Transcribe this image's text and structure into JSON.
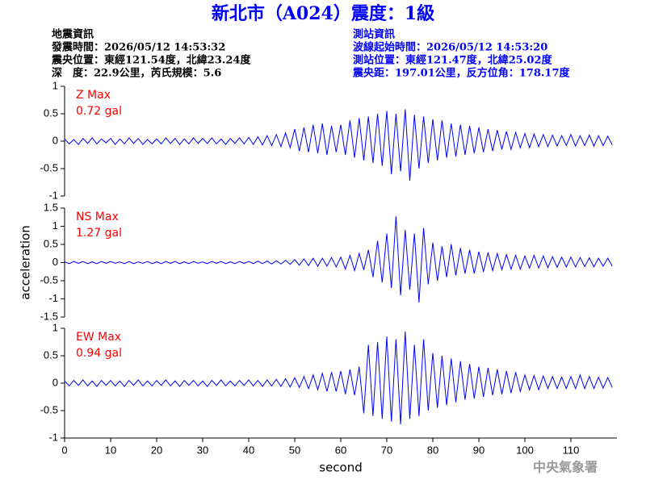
{
  "header": {
    "title": "新北市（A024）震度：1級",
    "left": [
      "地震資訊",
      "發震時間：2026/05/12 14:53:32",
      "震央位置：東經121.54度，北緯23.24度",
      "深　度：22.9公里，芮氏規模：5.6"
    ],
    "right": [
      "測站資訊",
      "波線起始時間：2026/05/12 14:53:20",
      "測站位置：東經121.47度，北緯25.02度",
      "震央距：197.01公里，反方位角：178.17度"
    ]
  },
  "footer": {
    "agency": "中央氣象署"
  },
  "chart_data": [
    {
      "type": "line",
      "label": "Z Max",
      "annotation": "0.72 gal",
      "color": "#0000ff",
      "ylim": [
        -1,
        1
      ],
      "yticks": [
        1,
        0.5,
        0,
        -0.5,
        -1
      ],
      "xlim": [
        0,
        120
      ],
      "x": [
        0,
        1,
        2,
        3,
        4,
        5,
        6,
        7,
        8,
        9,
        10,
        11,
        12,
        13,
        14,
        15,
        16,
        17,
        18,
        19,
        20,
        21,
        22,
        23,
        24,
        25,
        26,
        27,
        28,
        29,
        30,
        31,
        32,
        33,
        34,
        35,
        36,
        37,
        38,
        39,
        40,
        41,
        42,
        43,
        44,
        45,
        46,
        47,
        48,
        49,
        50,
        51,
        52,
        53,
        54,
        55,
        56,
        57,
        58,
        59,
        60,
        61,
        62,
        63,
        64,
        65,
        66,
        67,
        68,
        69,
        70,
        71,
        72,
        73,
        74,
        75,
        76,
        77,
        78,
        79,
        80,
        81,
        82,
        83,
        84,
        85,
        86,
        87,
        88,
        89,
        90,
        91,
        92,
        93,
        94,
        95,
        96,
        97,
        98,
        99,
        100,
        101,
        102,
        103,
        104,
        105,
        106,
        107,
        108,
        109,
        110,
        111,
        112,
        113,
        114,
        115,
        116,
        117,
        118,
        119
      ],
      "values": [
        0.04,
        -0.05,
        0.03,
        -0.06,
        0.05,
        -0.04,
        0.06,
        -0.05,
        0.04,
        -0.03,
        0.05,
        -0.06,
        0.04,
        -0.05,
        0.06,
        -0.04,
        0.05,
        -0.06,
        0.03,
        -0.05,
        0.04,
        -0.05,
        0.06,
        -0.04,
        0.05,
        -0.06,
        0.04,
        -0.05,
        0.06,
        -0.04,
        0.05,
        -0.04,
        0.06,
        -0.05,
        0.04,
        -0.06,
        0.05,
        -0.04,
        0.06,
        -0.05,
        0.07,
        -0.06,
        0.08,
        -0.07,
        0.1,
        -0.08,
        0.12,
        -0.1,
        0.15,
        -0.12,
        0.22,
        -0.18,
        0.25,
        -0.2,
        0.3,
        -0.22,
        0.32,
        -0.25,
        0.28,
        -0.2,
        0.3,
        -0.25,
        0.38,
        -0.3,
        0.42,
        -0.35,
        0.45,
        -0.4,
        0.5,
        -0.45,
        0.55,
        -0.6,
        0.5,
        -0.55,
        0.58,
        -0.72,
        0.48,
        -0.5,
        0.45,
        -0.4,
        0.4,
        -0.35,
        0.38,
        -0.3,
        0.32,
        -0.28,
        0.3,
        -0.25,
        0.28,
        -0.22,
        0.25,
        -0.2,
        0.22,
        -0.18,
        0.2,
        -0.15,
        0.18,
        -0.15,
        0.16,
        -0.12,
        0.14,
        -0.12,
        0.13,
        -0.1,
        0.12,
        -0.1,
        0.11,
        -0.09,
        0.1,
        -0.08,
        0.12,
        -0.09,
        0.1,
        -0.08,
        0.11,
        -0.09,
        0.1,
        -0.08,
        0.09,
        -0.07
      ]
    },
    {
      "type": "line",
      "label": "NS Max",
      "annotation": "1.27 gal",
      "color": "#0000ff",
      "ylabel": "acceleration",
      "ylim": [
        -1.5,
        1.5
      ],
      "yticks": [
        1.5,
        1,
        0.5,
        0,
        -0.5,
        -1,
        -1.5
      ],
      "xlim": [
        0,
        120
      ],
      "x": [
        0,
        1,
        2,
        3,
        4,
        5,
        6,
        7,
        8,
        9,
        10,
        11,
        12,
        13,
        14,
        15,
        16,
        17,
        18,
        19,
        20,
        21,
        22,
        23,
        24,
        25,
        26,
        27,
        28,
        29,
        30,
        31,
        32,
        33,
        34,
        35,
        36,
        37,
        38,
        39,
        40,
        41,
        42,
        43,
        44,
        45,
        46,
        47,
        48,
        49,
        50,
        51,
        52,
        53,
        54,
        55,
        56,
        57,
        58,
        59,
        60,
        61,
        62,
        63,
        64,
        65,
        66,
        67,
        68,
        69,
        70,
        71,
        72,
        73,
        74,
        75,
        76,
        77,
        78,
        79,
        80,
        81,
        82,
        83,
        84,
        85,
        86,
        87,
        88,
        89,
        90,
        91,
        92,
        93,
        94,
        95,
        96,
        97,
        98,
        99,
        100,
        101,
        102,
        103,
        104,
        105,
        106,
        107,
        108,
        109,
        110,
        111,
        112,
        113,
        114,
        115,
        116,
        117,
        118,
        119
      ],
      "values": [
        0.02,
        -0.03,
        0.03,
        -0.02,
        0.03,
        -0.03,
        0.02,
        -0.03,
        0.03,
        -0.02,
        0.03,
        -0.02,
        0.02,
        -0.03,
        0.03,
        -0.03,
        0.02,
        -0.02,
        0.03,
        -0.03,
        0.02,
        -0.03,
        0.03,
        -0.02,
        0.03,
        -0.03,
        0.02,
        -0.03,
        0.03,
        -0.02,
        0.02,
        -0.03,
        0.03,
        -0.02,
        0.03,
        -0.03,
        0.02,
        -0.03,
        0.03,
        -0.02,
        0.03,
        -0.03,
        0.04,
        -0.03,
        0.04,
        -0.04,
        0.05,
        -0.04,
        0.06,
        -0.05,
        0.08,
        -0.07,
        0.1,
        -0.08,
        0.12,
        -0.1,
        0.12,
        -0.1,
        0.14,
        -0.12,
        0.15,
        -0.18,
        0.2,
        -0.22,
        0.25,
        -0.2,
        0.35,
        -0.4,
        0.6,
        -0.55,
        0.8,
        -0.7,
        1.27,
        -0.9,
        0.9,
        -0.75,
        0.8,
        -1.1,
        0.95,
        -0.6,
        0.55,
        -0.5,
        0.45,
        -0.4,
        0.5,
        -0.35,
        0.4,
        -0.3,
        0.35,
        -0.3,
        0.3,
        -0.25,
        0.28,
        -0.22,
        0.25,
        -0.2,
        0.22,
        -0.18,
        0.2,
        -0.18,
        0.18,
        -0.15,
        0.2,
        -0.15,
        0.18,
        -0.14,
        0.16,
        -0.13,
        0.15,
        -0.12,
        0.15,
        -0.12,
        0.14,
        -0.11,
        0.13,
        -0.12,
        0.12,
        -0.1,
        0.12,
        -0.1
      ]
    },
    {
      "type": "line",
      "label": "EW Max",
      "annotation": "0.94 gal",
      "color": "#0000ff",
      "xlabel": "second",
      "ylim": [
        -1,
        1
      ],
      "yticks": [
        1,
        0.5,
        0,
        -0.5,
        -1
      ],
      "xlim": [
        0,
        120
      ],
      "xticks": [
        0,
        10,
        20,
        30,
        40,
        50,
        60,
        70,
        80,
        90,
        100,
        110
      ],
      "x": [
        0,
        1,
        2,
        3,
        4,
        5,
        6,
        7,
        8,
        9,
        10,
        11,
        12,
        13,
        14,
        15,
        16,
        17,
        18,
        19,
        20,
        21,
        22,
        23,
        24,
        25,
        26,
        27,
        28,
        29,
        30,
        31,
        32,
        33,
        34,
        35,
        36,
        37,
        38,
        39,
        40,
        41,
        42,
        43,
        44,
        45,
        46,
        47,
        48,
        49,
        50,
        51,
        52,
        53,
        54,
        55,
        56,
        57,
        58,
        59,
        60,
        61,
        62,
        63,
        64,
        65,
        66,
        67,
        68,
        69,
        70,
        71,
        72,
        73,
        74,
        75,
        76,
        77,
        78,
        79,
        80,
        81,
        82,
        83,
        84,
        85,
        86,
        87,
        88,
        89,
        90,
        91,
        92,
        93,
        94,
        95,
        96,
        97,
        98,
        99,
        100,
        101,
        102,
        103,
        104,
        105,
        106,
        107,
        108,
        109,
        110,
        111,
        112,
        113,
        114,
        115,
        116,
        117,
        118,
        119
      ],
      "values": [
        0.04,
        -0.05,
        0.05,
        -0.04,
        0.06,
        -0.05,
        0.04,
        -0.06,
        0.05,
        -0.04,
        0.05,
        -0.05,
        0.04,
        -0.06,
        0.05,
        -0.04,
        0.06,
        -0.05,
        0.04,
        -0.05,
        0.05,
        -0.04,
        0.06,
        -0.05,
        0.04,
        -0.06,
        0.05,
        -0.04,
        0.05,
        -0.05,
        0.04,
        -0.06,
        0.05,
        -0.04,
        0.06,
        -0.05,
        0.04,
        -0.05,
        0.05,
        -0.04,
        0.06,
        -0.05,
        0.05,
        -0.06,
        0.06,
        -0.05,
        0.07,
        -0.06,
        0.08,
        -0.07,
        0.1,
        -0.08,
        0.12,
        -0.1,
        0.15,
        -0.12,
        0.18,
        -0.15,
        0.2,
        -0.15,
        0.22,
        -0.2,
        0.25,
        -0.22,
        0.3,
        -0.55,
        0.7,
        -0.6,
        0.75,
        -0.65,
        0.85,
        -0.7,
        0.8,
        -0.75,
        0.94,
        -0.65,
        0.7,
        -0.6,
        0.8,
        -0.5,
        0.55,
        -0.45,
        0.5,
        -0.4,
        0.45,
        -0.35,
        0.4,
        -0.3,
        0.35,
        -0.28,
        0.3,
        -0.25,
        0.28,
        -0.22,
        0.25,
        -0.2,
        0.22,
        -0.18,
        0.2,
        -0.15,
        0.15,
        -0.12,
        0.14,
        -0.12,
        0.13,
        -0.1,
        0.12,
        -0.1,
        0.11,
        -0.1,
        0.12,
        -0.1,
        0.15,
        -0.1,
        0.12,
        -0.1,
        0.11,
        -0.09,
        0.1,
        -0.08
      ]
    }
  ]
}
